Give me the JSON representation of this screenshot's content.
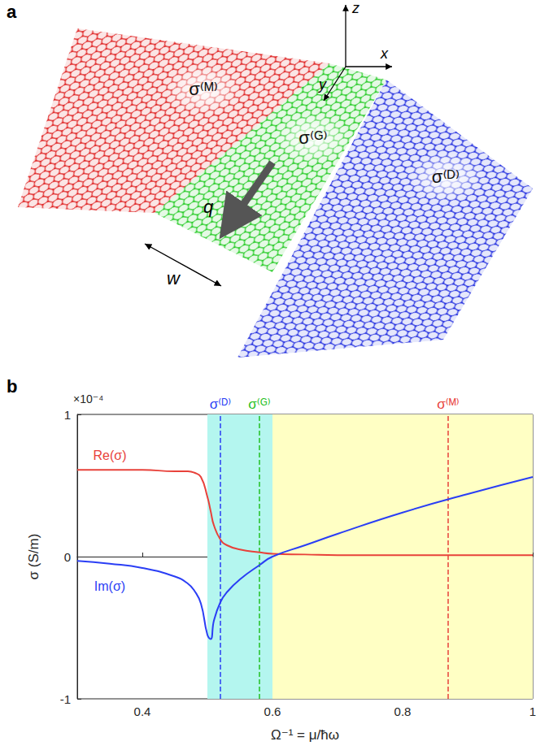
{
  "panel_labels": [
    "a",
    "b"
  ],
  "diagram": {
    "axes": [
      "x",
      "y",
      "z"
    ],
    "regions": [
      {
        "label": "σ⁽ᴹ⁾",
        "color": "#e02a2a"
      },
      {
        "label": "σ⁽ᴳ⁾",
        "color": "#2ccc2c"
      },
      {
        "label": "σ⁽ᴰ⁾",
        "color": "#2a36e0"
      }
    ],
    "wave_vector": "q",
    "width": "w"
  },
  "chart_data": {
    "type": "line",
    "x": [
      0.3,
      0.35,
      0.4,
      0.45,
      0.47,
      0.48,
      0.49,
      0.5,
      0.505,
      0.51,
      0.52,
      0.53,
      0.55,
      0.58,
      0.6,
      0.65,
      0.7,
      0.8,
      0.9,
      1.0
    ],
    "series": [
      {
        "name": "Re(σ)",
        "color": "#e8413a",
        "values": [
          0.61,
          0.61,
          0.61,
          0.6,
          0.6,
          0.59,
          0.56,
          0.42,
          0.32,
          0.22,
          0.12,
          0.08,
          0.05,
          0.03,
          0.02,
          0.015,
          0.01,
          0.01,
          0.01,
          0.01
        ]
      },
      {
        "name": "Im(σ)",
        "color": "#2a3ef5",
        "values": [
          -0.03,
          -0.05,
          -0.08,
          -0.14,
          -0.19,
          -0.24,
          -0.33,
          -0.55,
          -0.58,
          -0.45,
          -0.32,
          -0.25,
          -0.16,
          -0.06,
          0.0,
          0.08,
          0.16,
          0.31,
          0.44,
          0.56
        ]
      }
    ],
    "xlabel": "Ω⁻¹ = μ/ħω",
    "ylabel": "σ (S/m)",
    "y_multiplier": "×10⁻⁴",
    "xlim": [
      0.3,
      1
    ],
    "xticks": [
      0.4,
      0.6,
      0.8,
      1
    ],
    "ylim": [
      -1,
      1
    ],
    "yticks": [
      -1,
      0,
      1
    ],
    "grid": false,
    "regions": [
      {
        "from": 0.5,
        "to": 0.6,
        "color": "#b4f6ef"
      },
      {
        "from": 0.6,
        "to": 1,
        "color": "#ffffc4"
      }
    ],
    "markers": [
      {
        "x": 0.515,
        "label": "σ⁽ᴰ⁾",
        "color": "#2a3ef5",
        "line_style": "dashed"
      },
      {
        "x": 0.578,
        "label": "σ⁽ᴳ⁾",
        "color": "#22c022",
        "line_style": "dashed"
      },
      {
        "x": 0.87,
        "label": "σ⁽ᴹ⁾",
        "color": "#e8413a",
        "line_style": "dashed"
      }
    ]
  }
}
